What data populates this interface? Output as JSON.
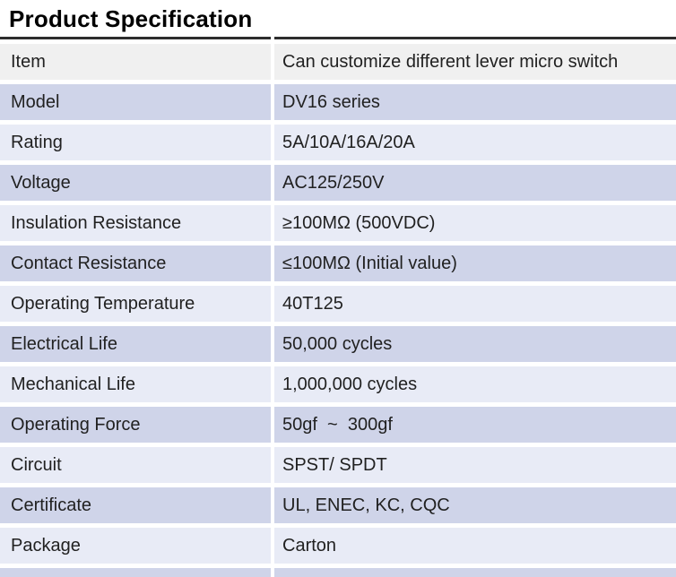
{
  "title": "Product Specification",
  "colors": {
    "title-text": "#000000",
    "text": "#212121",
    "top-border": "#2d2d2d",
    "header-bg": "#f0f0f0",
    "row-dark": "#cfd4e9",
    "row-light": "#e8ebf6",
    "gap": "#ffffff"
  },
  "table": {
    "header": {
      "label": "Item",
      "value": "Can customize different lever micro switch"
    },
    "rows": [
      {
        "label": "Model",
        "value": "DV16 series"
      },
      {
        "label": "Rating",
        "value": "5A/10A/16A/20A"
      },
      {
        "label": "Voltage",
        "value": "AC125/250V"
      },
      {
        "label": "Insulation Resistance",
        "value": "≥100MΩ (500VDC)"
      },
      {
        "label": "Contact Resistance",
        "value": "≤100MΩ (Initial value)"
      },
      {
        "label": "Operating Temperature",
        "value": "40T125"
      },
      {
        "label": "Electrical Life",
        "value": "50,000 cycles"
      },
      {
        "label": "Mechanical Life",
        "value": "1,000,000 cycles"
      },
      {
        "label": "Operating Force",
        "value": "50gf  ~  300gf"
      },
      {
        "label": "Circuit",
        "value": "SPST/ SPDT"
      },
      {
        "label": "Certificate",
        "value": "UL, ENEC, KC, CQC"
      },
      {
        "label": "Package",
        "value": "Carton"
      }
    ]
  }
}
